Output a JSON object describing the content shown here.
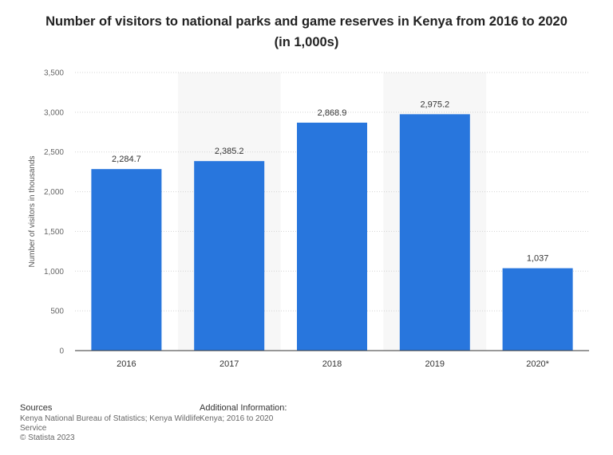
{
  "chart_data": {
    "type": "bar",
    "title": "Number of visitors to national parks and game reserves in Kenya from 2016 to 2020",
    "subtitle": "(in 1,000s)",
    "ylabel": "Number of visitors in thousands",
    "xlabel": "",
    "categories": [
      "2016",
      "2017",
      "2018",
      "2019",
      "2020*"
    ],
    "values": [
      2284.7,
      2385.2,
      2868.9,
      2975.2,
      1037
    ],
    "value_labels": [
      "2,284.7",
      "2,385.2",
      "2,868.9",
      "2,975.2",
      "1,037"
    ],
    "ylim": [
      0,
      3500
    ],
    "yticks": [
      0,
      500,
      1000,
      1500,
      2000,
      2500,
      3000,
      3500
    ],
    "ytick_labels": [
      "0",
      "500",
      "1,000",
      "1,500",
      "2,000",
      "2,500",
      "3,000",
      "3,500"
    ],
    "grid": true,
    "bar_color": "#2876dd"
  },
  "footer": {
    "sources_heading": "Sources",
    "sources_line1": "Kenya National Bureau of Statistics; Kenya Wildlife",
    "sources_line2": "Service",
    "copyright": "© Statista 2023",
    "additional_heading": "Additional Information:",
    "additional_text": "Kenya; 2016 to 2020"
  }
}
